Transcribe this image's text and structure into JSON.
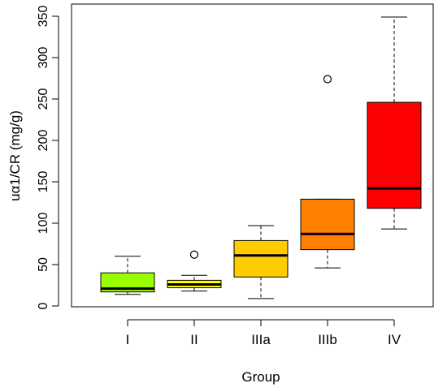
{
  "chart_data": {
    "type": "box",
    "xlabel": "Group",
    "ylabel": "uα1/CR (mg/g)",
    "ylim": [
      0,
      350
    ],
    "yticks": [
      0,
      50,
      100,
      150,
      200,
      250,
      300,
      350
    ],
    "grid": false,
    "categories": [
      "I",
      "II",
      "IIIa",
      "IIIb",
      "IV"
    ],
    "boxes": [
      {
        "category": "I",
        "whisker_low": 14,
        "q1": 17,
        "median": 21,
        "q3": 40,
        "whisker_high": 60,
        "outliers": [],
        "color": "#99ff00"
      },
      {
        "category": "II",
        "whisker_low": 18,
        "q1": 22,
        "median": 26,
        "q3": 31,
        "whisker_high": 37,
        "outliers": [
          62
        ],
        "color": "#ffff00"
      },
      {
        "category": "IIIa",
        "whisker_low": 9,
        "q1": 35,
        "median": 61,
        "q3": 79,
        "whisker_high": 97,
        "outliers": [],
        "color": "#ffcc00"
      },
      {
        "category": "IIIb",
        "whisker_low": 46,
        "q1": 68,
        "median": 87,
        "q3": 129,
        "whisker_high": 129,
        "outliers": [
          274
        ],
        "color": "#ff8000"
      },
      {
        "category": "IV",
        "whisker_low": 93,
        "q1": 118,
        "median": 142,
        "q3": 246,
        "whisker_high": 349,
        "outliers": [],
        "color": "#ff0000"
      }
    ]
  }
}
